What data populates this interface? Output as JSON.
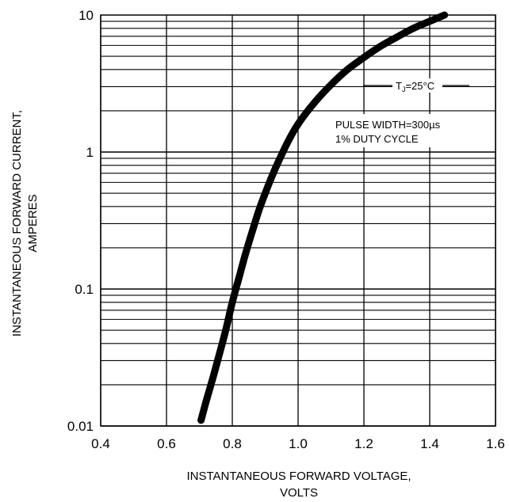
{
  "chart_data": {
    "type": "line",
    "xlabel_lines": [
      "INSTANTANEOUS FORWARD VOLTAGE,",
      "VOLTS"
    ],
    "ylabel_lines": [
      "INSTANTANEOUS FORWARD CURRENT,",
      "AMPERES"
    ],
    "x_ticks": [
      0.4,
      0.6,
      0.8,
      1.0,
      1.2,
      1.4,
      1.6
    ],
    "x_tick_labels": [
      "0.4",
      "0.6",
      "0.8",
      "1.0",
      "1.2",
      "1.4",
      "1.6"
    ],
    "xlim": [
      0.4,
      1.6
    ],
    "y_scale": "log",
    "ylim": [
      0.01,
      10
    ],
    "y_ticks": [
      0.01,
      0.1,
      1,
      10
    ],
    "y_tick_labels": [
      "0.01",
      "0.1",
      "1",
      "10"
    ],
    "grid": true,
    "annotations": {
      "temp_label_main": "T",
      "temp_label_sub": "J",
      "temp_label_rest": "=25°C",
      "pulse_line1": "PULSE WIDTH=300µs",
      "pulse_line2": "1% DUTY CYCLE"
    },
    "series": [
      {
        "x": [
          0.705,
          0.72,
          0.74,
          0.76,
          0.78,
          0.8,
          0.82,
          0.84,
          0.86,
          0.88,
          0.9,
          0.92,
          0.94,
          0.97,
          1.0,
          1.05,
          1.1,
          1.15,
          1.2,
          1.25,
          1.3,
          1.35,
          1.4,
          1.445
        ],
        "y": [
          0.011,
          0.015,
          0.022,
          0.033,
          0.05,
          0.08,
          0.12,
          0.18,
          0.26,
          0.37,
          0.5,
          0.66,
          0.85,
          1.2,
          1.6,
          2.3,
          3.1,
          4.0,
          4.9,
          5.9,
          6.9,
          8.0,
          9.0,
          10.0
        ]
      }
    ],
    "line_color": "#000000"
  }
}
